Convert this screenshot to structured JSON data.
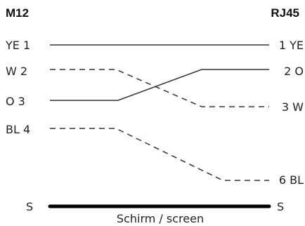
{
  "headers": {
    "left": "M12",
    "right": "RJ45"
  },
  "left_pins": [
    {
      "id": "ye1",
      "label": "YE 1"
    },
    {
      "id": "w2",
      "label": "W 2"
    },
    {
      "id": "o3",
      "label": "O 3"
    },
    {
      "id": "bl4",
      "label": "BL 4"
    },
    {
      "id": "s",
      "label": "S"
    }
  ],
  "right_pins": [
    {
      "id": "1ye",
      "label": "1 YE"
    },
    {
      "id": "2o",
      "label": "2 O"
    },
    {
      "id": "3w",
      "label": "3 W"
    },
    {
      "id": "6bl",
      "label": "6 BL"
    },
    {
      "id": "s",
      "label": "S"
    }
  ],
  "connections": [
    {
      "from": "YE 1",
      "to": "1 YE",
      "style": "solid"
    },
    {
      "from": "W 2",
      "to": "3 W",
      "style": "dashed"
    },
    {
      "from": "O 3",
      "to": "2 O",
      "style": "solid"
    },
    {
      "from": "BL 4",
      "to": "6 BL",
      "style": "dashed"
    },
    {
      "from": "S",
      "to": "S",
      "style": "thick"
    }
  ],
  "caption": "Schirm / screen"
}
